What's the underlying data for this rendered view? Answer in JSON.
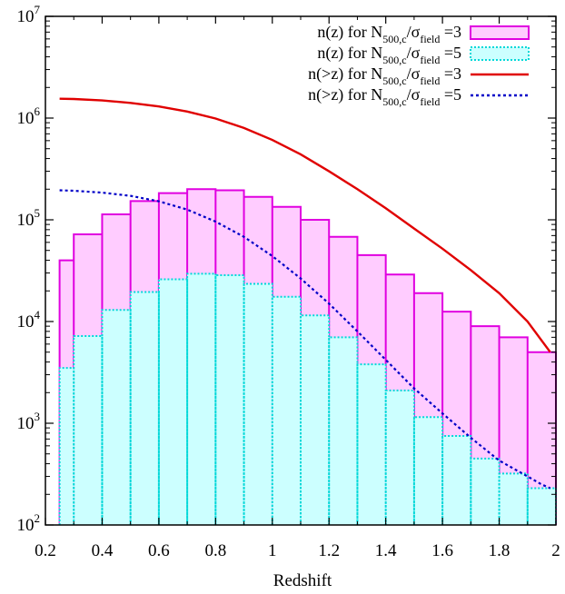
{
  "chart_data": {
    "type": "bar",
    "xlabel": "Redshift",
    "ylabel": "",
    "xlim": [
      0.25,
      2.0
    ],
    "ylim": [
      100,
      10000000
    ],
    "yscale": "log",
    "x_ticks": [
      "0.2",
      "0.4",
      "0.6",
      "0.8",
      "1",
      "1.2",
      "1.4",
      "1.6",
      "1.8",
      "2"
    ],
    "y_ticks": [
      {
        "base": "10",
        "exp": "2"
      },
      {
        "base": "10",
        "exp": "3"
      },
      {
        "base": "10",
        "exp": "4"
      },
      {
        "base": "10",
        "exp": "5"
      },
      {
        "base": "10",
        "exp": "6"
      },
      {
        "base": "10",
        "exp": "7"
      }
    ],
    "legend_position": "top-right",
    "bin_edges": [
      0.25,
      0.3,
      0.4,
      0.5,
      0.6,
      0.7,
      0.8,
      0.9,
      1.0,
      1.1,
      1.2,
      1.3,
      1.4,
      1.5,
      1.6,
      1.7,
      1.8,
      1.9,
      2.0
    ],
    "series": [
      {
        "key": "hist3",
        "kind": "histogram",
        "legend": {
          "pre": "n(z) for N",
          "sub1": "500,c",
          "mid": "/σ",
          "sub2": "field",
          "post": " =3"
        },
        "color": "#e000e0",
        "fill": "#ffccff",
        "values": [
          40000,
          72000,
          113000,
          153000,
          183000,
          200000,
          195000,
          168000,
          134000,
          100000,
          68000,
          45000,
          29000,
          19000,
          12500,
          9000,
          7000,
          5000
        ]
      },
      {
        "key": "hist5",
        "kind": "histogram",
        "legend": {
          "pre": "n(z) for N",
          "sub1": "500,c",
          "mid": "/σ",
          "sub2": "field",
          "post": " =5"
        },
        "color": "#00d8d8",
        "fill": "#ccffff",
        "values": [
          3500,
          7200,
          13000,
          19500,
          26000,
          29500,
          28500,
          23500,
          17500,
          11500,
          7000,
          3800,
          2100,
          1150,
          750,
          450,
          320,
          230
        ]
      },
      {
        "key": "cum3",
        "kind": "line",
        "legend": {
          "pre": "n(>z) for N",
          "sub1": "500,c",
          "mid": "/σ",
          "sub2": "field",
          "post": " =3"
        },
        "color": "#e00000",
        "x": [
          0.25,
          0.3,
          0.4,
          0.5,
          0.6,
          0.7,
          0.8,
          0.9,
          1.0,
          1.1,
          1.2,
          1.3,
          1.4,
          1.5,
          1.6,
          1.7,
          1.8,
          1.9,
          1.98
        ],
        "values": [
          1550000,
          1540000,
          1490000,
          1410000,
          1300000,
          1160000,
          990000,
          800000,
          610000,
          440000,
          300000,
          200000,
          130000,
          82000,
          52000,
          32000,
          19000,
          10000,
          5000
        ]
      },
      {
        "key": "cum5",
        "kind": "line",
        "legend": {
          "pre": "n(>z) for N",
          "sub1": "500,c",
          "mid": "/σ",
          "sub2": "field",
          "post": " =5"
        },
        "color": "#0000c8",
        "x": [
          0.25,
          0.3,
          0.4,
          0.5,
          0.6,
          0.7,
          0.8,
          0.9,
          1.0,
          1.1,
          1.2,
          1.3,
          1.4,
          1.5,
          1.6,
          1.7,
          1.8,
          1.9,
          1.95,
          1.98
        ],
        "values": [
          195000,
          193000,
          185000,
          172000,
          152000,
          126000,
          96000,
          68000,
          44000,
          26500,
          15000,
          8000,
          4200,
          2200,
          1250,
          720,
          430,
          300,
          250,
          230
        ]
      }
    ]
  }
}
